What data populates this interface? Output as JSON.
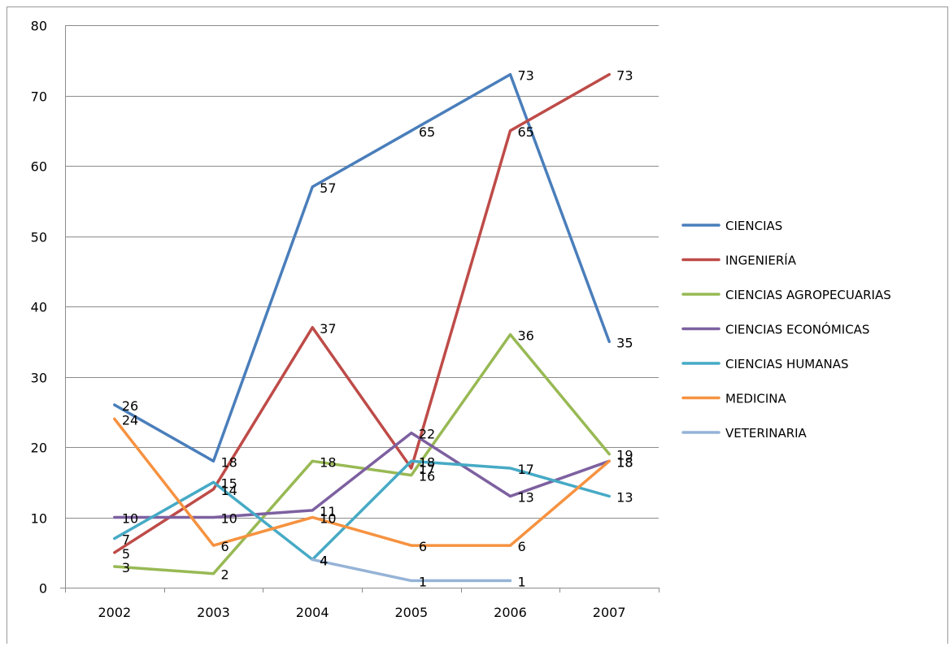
{
  "chart_data": {
    "type": "line",
    "title": "",
    "xlabel": "",
    "ylabel": "",
    "categories": [
      "2002",
      "2003",
      "2004",
      "2005",
      "2006",
      "2007"
    ],
    "ylim": [
      0,
      80
    ],
    "yticks": [
      0,
      10,
      20,
      30,
      40,
      50,
      60,
      70,
      80
    ],
    "grid": true,
    "legend_position": "right",
    "series": [
      {
        "name": "CIENCIAS",
        "color": "#4A7EBB",
        "values": [
          26,
          18,
          57,
          65,
          73,
          35
        ]
      },
      {
        "name": "INGENIERÍA",
        "color": "#BE4B48",
        "values": [
          5,
          14,
          37,
          17,
          65,
          73
        ]
      },
      {
        "name": "CIENCIAS AGROPECUARIAS",
        "color": "#98B954",
        "values": [
          3,
          2,
          18,
          16,
          36,
          19
        ]
      },
      {
        "name": "CIENCIAS ECONÓMICAS",
        "color": "#7D60A0",
        "values": [
          10,
          10,
          11,
          22,
          13,
          18
        ]
      },
      {
        "name": "CIENCIAS HUMANAS",
        "color": "#46AAC5",
        "values": [
          7,
          15,
          4,
          18,
          17,
          13
        ]
      },
      {
        "name": "MEDICINA",
        "color": "#F69240",
        "values": [
          24,
          6,
          10,
          6,
          6,
          18
        ]
      },
      {
        "name": "VETERINARIA",
        "color": "#95B3D7",
        "values": [
          null,
          null,
          4,
          1,
          1,
          null
        ]
      }
    ]
  }
}
